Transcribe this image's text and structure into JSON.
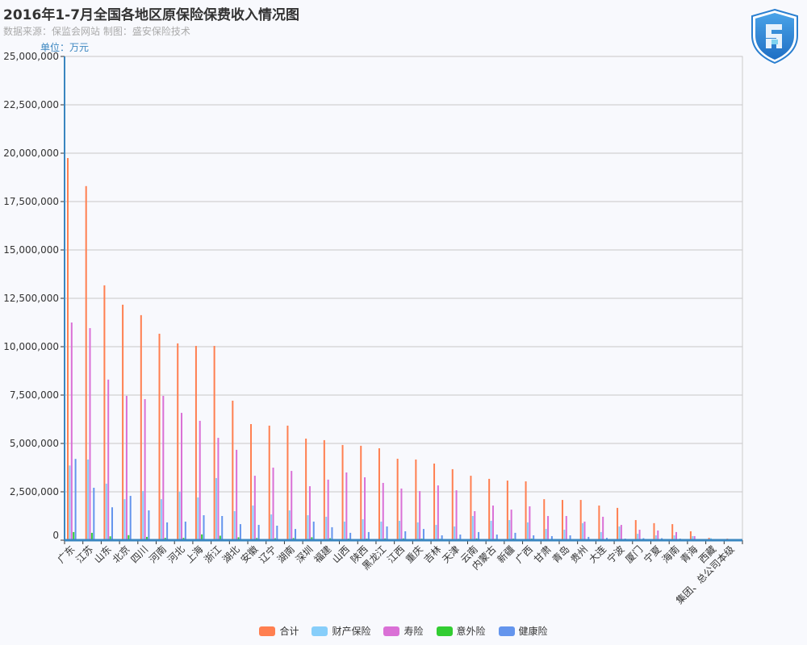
{
  "header": {
    "title": "2016年1-7月全国各地区原保险保费收入情况图",
    "subtitle": "数据来源：保监会网站   制图：盛安保险技术",
    "unit": "单位：万元"
  },
  "logo": {
    "text": "S",
    "colors": [
      "#1f6fc4",
      "#4aa3e8"
    ]
  },
  "chart_data": {
    "type": "bar",
    "title": "2016年1-7月全国各地区原保险保费收入情况图",
    "ylabel": "单位：万元",
    "ylim": [
      0,
      25000000
    ],
    "yticks": [
      0,
      2500000,
      5000000,
      7500000,
      10000000,
      12500000,
      15000000,
      17500000,
      20000000,
      22500000,
      25000000
    ],
    "ytick_labels": [
      "0",
      "2,500,000",
      "5,000,000",
      "7,500,000",
      "10,000,000",
      "12,500,000",
      "15,000,000",
      "17,500,000",
      "20,000,000",
      "22,500,000",
      "25,000,000"
    ],
    "grid": true,
    "legend_position": "bottom",
    "categories": [
      "广东",
      "江苏",
      "山东",
      "北京",
      "四川",
      "河南",
      "河北",
      "上海",
      "浙江",
      "湖北",
      "安徽",
      "辽宁",
      "湖南",
      "深圳",
      "福建",
      "山西",
      "陕西",
      "黑龙江",
      "江西",
      "重庆",
      "吉林",
      "天津",
      "云南",
      "内蒙古",
      "新疆",
      "广西",
      "甘肃",
      "青岛",
      "贵州",
      "大连",
      "宁波",
      "厦门",
      "宁夏",
      "海南",
      "青海",
      "西藏",
      "集团、总公司本级"
    ],
    "series": [
      {
        "name": "合计",
        "color": "#ff7f50",
        "values": [
          19750000,
          18300000,
          13170000,
          12170000,
          11630000,
          10670000,
          10170000,
          10040000,
          10040000,
          7210000,
          6000000,
          5920000,
          5920000,
          5250000,
          5170000,
          4920000,
          4880000,
          4750000,
          4210000,
          4170000,
          3960000,
          3670000,
          3330000,
          3170000,
          3080000,
          3040000,
          2120000,
          2080000,
          2080000,
          1790000,
          1670000,
          1040000,
          880000,
          830000,
          460000,
          120000,
          80000
        ]
      },
      {
        "name": "财产保险",
        "color": "#87cefa",
        "values": [
          3860000,
          4170000,
          2920000,
          2120000,
          2540000,
          2120000,
          2500000,
          2210000,
          3210000,
          1500000,
          1790000,
          1330000,
          1540000,
          1290000,
          1210000,
          960000,
          1080000,
          960000,
          1000000,
          920000,
          790000,
          710000,
          1250000,
          1000000,
          1040000,
          920000,
          580000,
          540000,
          880000,
          420000,
          710000,
          330000,
          250000,
          250000,
          210000,
          100000,
          60000
        ]
      },
      {
        "name": "寿险",
        "color": "#da70d6",
        "values": [
          11250000,
          10960000,
          8300000,
          7460000,
          7290000,
          7460000,
          6580000,
          6170000,
          5290000,
          4670000,
          3330000,
          3750000,
          3580000,
          2790000,
          3130000,
          3500000,
          3250000,
          2960000,
          2670000,
          2540000,
          2830000,
          2580000,
          1500000,
          1790000,
          1580000,
          1750000,
          1250000,
          1250000,
          960000,
          1210000,
          790000,
          540000,
          500000,
          420000,
          210000,
          20000,
          0
        ]
      },
      {
        "name": "意外险",
        "color": "#32cd32",
        "values": [
          420000,
          380000,
          200000,
          260000,
          170000,
          120000,
          120000,
          300000,
          230000,
          150000,
          110000,
          100000,
          110000,
          150000,
          100000,
          80000,
          80000,
          90000,
          90000,
          80000,
          70000,
          70000,
          90000,
          70000,
          80000,
          80000,
          50000,
          50000,
          60000,
          40000,
          40000,
          30000,
          30000,
          30000,
          20000,
          10000,
          20000
        ]
      },
      {
        "name": "健康险",
        "color": "#6495ed",
        "values": [
          4200000,
          2710000,
          1700000,
          2290000,
          1540000,
          920000,
          960000,
          1290000,
          1250000,
          830000,
          790000,
          750000,
          580000,
          960000,
          670000,
          380000,
          420000,
          710000,
          460000,
          580000,
          250000,
          290000,
          420000,
          290000,
          380000,
          250000,
          210000,
          250000,
          170000,
          120000,
          80000,
          100000,
          100000,
          80000,
          50000,
          10000,
          10000
        ]
      }
    ]
  }
}
